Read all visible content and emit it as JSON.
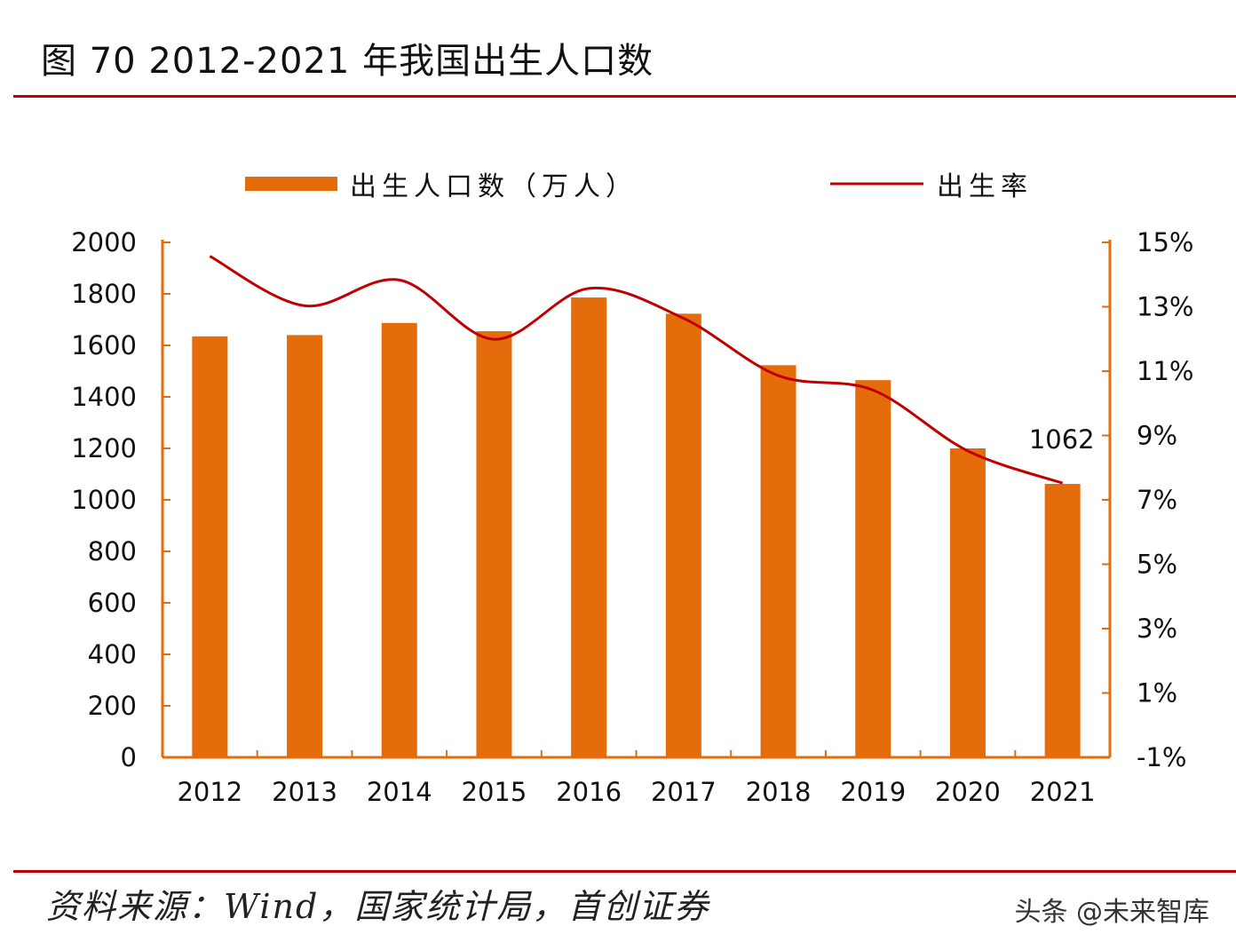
{
  "title": "图 70 2012-2021 年我国出生人口数",
  "source": "资料来源：Wind，国家统计局，首创证券",
  "watermark": "头条 @未来智库",
  "colors": {
    "bar": "#E46C0A",
    "line": "#C00000",
    "axis": "#E46C0A",
    "rule": "#C00000"
  },
  "chart_data": {
    "type": "bar",
    "title": "2012-2021 年我国出生人口数",
    "categories": [
      "2012",
      "2013",
      "2014",
      "2015",
      "2016",
      "2017",
      "2018",
      "2019",
      "2020",
      "2021"
    ],
    "series": [
      {
        "name": "出生人口数（万人）",
        "type": "bar",
        "axis": "left",
        "values": [
          1635,
          1640,
          1687,
          1655,
          1786,
          1723,
          1523,
          1465,
          1200,
          1062
        ]
      },
      {
        "name": "出生率",
        "type": "line",
        "axis": "right",
        "unit": "%",
        "values": [
          14.57,
          13.03,
          13.83,
          11.99,
          13.57,
          12.64,
          10.86,
          10.41,
          8.52,
          7.52
        ]
      }
    ],
    "y_left": {
      "range": [
        0,
        2000
      ],
      "ticks": [
        "0",
        "200",
        "400",
        "600",
        "800",
        "1000",
        "1200",
        "1400",
        "1600",
        "1800",
        "2000"
      ]
    },
    "y_right": {
      "range": [
        -1,
        15
      ],
      "ticks": [
        "-1%",
        "1%",
        "3%",
        "5%",
        "7%",
        "9%",
        "11%",
        "13%",
        "15%"
      ]
    },
    "annotations": [
      {
        "category": "2021",
        "text": "1062"
      }
    ],
    "legend": "top",
    "grid": false
  }
}
